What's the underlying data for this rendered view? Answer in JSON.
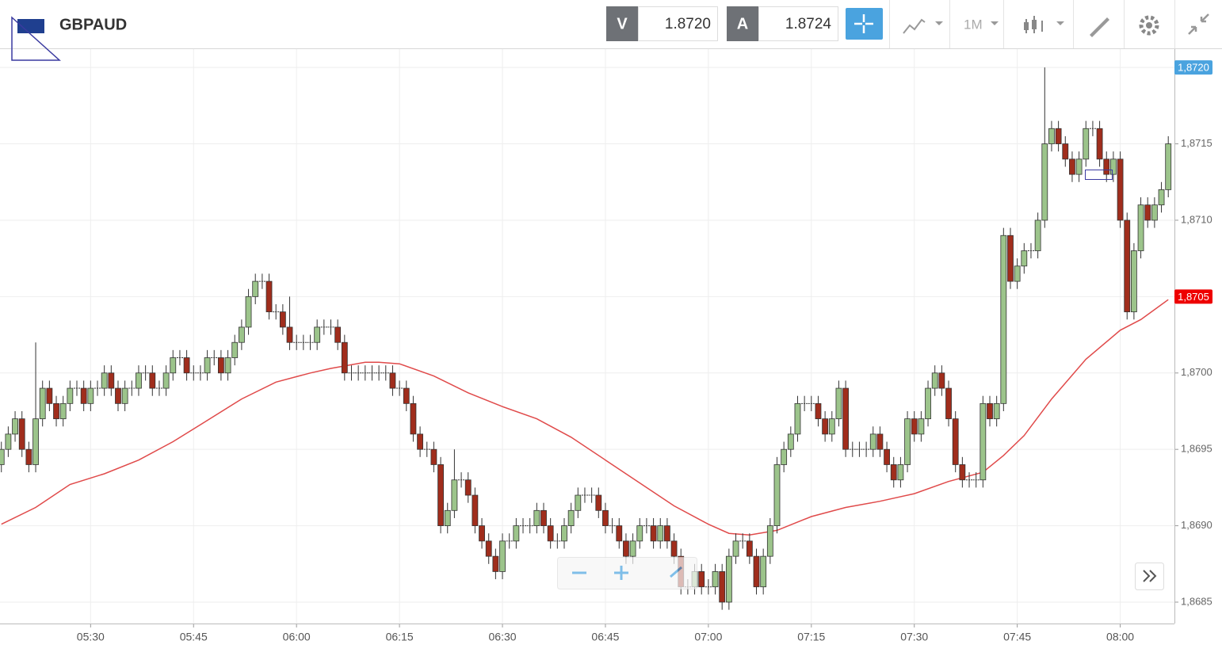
{
  "header": {
    "symbol": "GBPAUD",
    "sell_label": "V",
    "sell_price": "1.8720",
    "buy_label": "A",
    "buy_price": "1.8724",
    "timeframe": "1M"
  },
  "chart_data": {
    "type": "candlestick",
    "up_color": "#9cc48b",
    "down_color": "#a02d1c",
    "grid": true,
    "x": [
      317,
      318,
      319,
      320,
      321,
      322,
      323,
      324,
      325,
      326,
      327,
      328,
      329,
      330,
      331,
      332,
      333,
      334,
      335,
      336,
      337,
      338,
      339,
      340,
      341,
      342,
      343,
      344,
      345,
      346,
      347,
      348,
      349,
      350,
      351,
      352,
      353,
      354,
      355,
      356,
      357,
      358,
      359,
      360,
      361,
      362,
      363,
      364,
      365,
      366,
      367,
      368,
      369,
      370,
      371,
      372,
      373,
      374,
      375,
      376,
      377,
      378,
      379,
      380,
      381,
      382,
      383,
      384,
      385,
      386,
      387,
      388,
      389,
      390,
      391,
      392,
      393,
      394,
      395,
      396,
      397,
      398,
      399,
      400,
      401,
      402,
      403,
      404,
      405,
      406,
      407,
      408,
      409,
      410,
      411,
      412,
      413,
      414,
      415,
      416,
      417,
      418,
      419,
      420,
      421,
      422,
      423,
      424,
      425,
      426,
      427,
      428,
      429,
      430,
      431,
      432,
      433,
      434,
      435,
      436,
      437,
      438,
      439,
      440,
      441,
      442,
      443,
      444,
      445,
      446,
      447,
      448,
      449,
      450,
      451,
      452,
      453,
      454,
      455,
      456,
      457,
      458,
      459,
      460,
      461,
      462,
      463,
      464,
      465,
      466,
      467,
      468,
      469,
      470,
      471,
      472,
      473,
      474,
      475,
      476,
      477,
      478,
      479,
      480,
      481,
      482,
      483,
      484,
      485,
      486,
      487
    ],
    "open": [
      1.8694,
      1.8695,
      1.8696,
      1.8697,
      1.8695,
      1.8694,
      1.8697,
      1.8699,
      1.8698,
      1.8697,
      1.8698,
      1.8699,
      1.8699,
      1.8698,
      1.8699,
      1.8699,
      1.87,
      1.8699,
      1.8698,
      1.8699,
      1.8699,
      1.87,
      1.87,
      1.8699,
      1.8699,
      1.87,
      1.8701,
      1.8701,
      1.87,
      1.87,
      1.87,
      1.8701,
      1.8701,
      1.87,
      1.8701,
      1.8702,
      1.8703,
      1.8705,
      1.8706,
      1.8706,
      1.8704,
      1.8704,
      1.8703,
      1.8702,
      1.8702,
      1.8702,
      1.8702,
      1.8703,
      1.8703,
      1.8703,
      1.8702,
      1.87,
      1.87,
      1.87,
      1.87,
      1.87,
      1.87,
      1.87,
      1.8699,
      1.8699,
      1.8698,
      1.8696,
      1.8695,
      1.8695,
      1.8694,
      1.869,
      1.8691,
      1.8693,
      1.8693,
      1.8692,
      1.869,
      1.8689,
      1.8688,
      1.8687,
      1.8689,
      1.8689,
      1.869,
      1.869,
      1.869,
      1.8691,
      1.869,
      1.8689,
      1.8689,
      1.869,
      1.8691,
      1.8692,
      1.8692,
      1.8692,
      1.8691,
      1.869,
      1.869,
      1.8689,
      1.8688,
      1.8689,
      1.869,
      1.869,
      1.8689,
      1.869,
      1.8689,
      1.8688,
      1.8686,
      1.8686,
      1.8687,
      1.8686,
      1.8686,
      1.8687,
      1.8685,
      1.8688,
      1.8689,
      1.8689,
      1.8688,
      1.8686,
      1.8688,
      1.869,
      1.8694,
      1.8695,
      1.8696,
      1.8698,
      1.8698,
      1.8698,
      1.8697,
      1.8696,
      1.8697,
      1.8699,
      1.8695,
      1.8695,
      1.8695,
      1.8695,
      1.8696,
      1.8695,
      1.8694,
      1.8693,
      1.8694,
      1.8697,
      1.8696,
      1.8697,
      1.8699,
      1.87,
      1.8699,
      1.8697,
      1.8694,
      1.8693,
      1.8693,
      1.8693,
      1.8698,
      1.8697,
      1.8698,
      1.8709,
      1.8706,
      1.8707,
      1.8708,
      1.8708,
      1.871,
      1.8715,
      1.8716,
      1.8715,
      1.8714,
      1.8713,
      1.8714,
      1.8716,
      1.8716,
      1.8714,
      1.8713,
      1.8714,
      1.871,
      1.8704,
      1.8708,
      1.8711,
      1.871,
      1.8711,
      1.8712
    ],
    "high": [
      1.86955,
      1.86965,
      1.86975,
      1.86975,
      1.86955,
      1.8702,
      1.86995,
      1.86995,
      1.86985,
      1.86985,
      1.86995,
      1.86995,
      1.86995,
      1.86995,
      1.86995,
      1.87005,
      1.87005,
      1.86995,
      1.86995,
      1.86995,
      1.87005,
      1.87005,
      1.87005,
      1.86995,
      1.87005,
      1.87015,
      1.87015,
      1.87015,
      1.87005,
      1.87005,
      1.87015,
      1.87015,
      1.87015,
      1.87015,
      1.87025,
      1.87035,
      1.87055,
      1.87065,
      1.87065,
      1.87065,
      1.87045,
      1.87045,
      1.8705,
      1.87025,
      1.87025,
      1.87025,
      1.87035,
      1.87035,
      1.87035,
      1.87035,
      1.87025,
      1.87005,
      1.87005,
      1.87005,
      1.87005,
      1.87005,
      1.87005,
      1.87005,
      1.86995,
      1.86995,
      1.86985,
      1.86965,
      1.86955,
      1.86955,
      1.86945,
      1.86915,
      1.8695,
      1.86935,
      1.86935,
      1.86925,
      1.86905,
      1.86895,
      1.86885,
      1.86895,
      1.86895,
      1.86905,
      1.86905,
      1.86905,
      1.86915,
      1.86915,
      1.86905,
      1.86895,
      1.86905,
      1.86915,
      1.86925,
      1.86925,
      1.86925,
      1.86925,
      1.86915,
      1.86905,
      1.86905,
      1.86895,
      1.86895,
      1.86905,
      1.86905,
      1.86905,
      1.86905,
      1.86905,
      1.86895,
      1.86885,
      1.86865,
      1.86875,
      1.86875,
      1.86865,
      1.86875,
      1.86875,
      1.86885,
      1.86895,
      1.86895,
      1.86895,
      1.86885,
      1.86885,
      1.86905,
      1.86945,
      1.86955,
      1.86965,
      1.86985,
      1.86985,
      1.86985,
      1.86985,
      1.86975,
      1.86975,
      1.86995,
      1.86995,
      1.86955,
      1.86955,
      1.86955,
      1.86965,
      1.86965,
      1.86955,
      1.86945,
      1.86945,
      1.86975,
      1.86975,
      1.86975,
      1.86995,
      1.87005,
      1.87005,
      1.86995,
      1.86975,
      1.86945,
      1.86935,
      1.86935,
      1.86985,
      1.86985,
      1.86985,
      1.87095,
      1.87095,
      1.87075,
      1.87085,
      1.87085,
      1.87105,
      1.872,
      1.87165,
      1.87165,
      1.87155,
      1.87145,
      1.87145,
      1.87165,
      1.87165,
      1.87165,
      1.87145,
      1.87145,
      1.87145,
      1.87105,
      1.87085,
      1.87115,
      1.87115,
      1.87115,
      1.87125,
      1.87155
    ],
    "low": [
      1.86935,
      1.86945,
      1.86955,
      1.86945,
      1.86935,
      1.86935,
      1.86965,
      1.86975,
      1.86965,
      1.86965,
      1.86975,
      1.86985,
      1.86975,
      1.86975,
      1.86985,
      1.86985,
      1.86985,
      1.86975,
      1.86975,
      1.86985,
      1.86985,
      1.86995,
      1.86985,
      1.86985,
      1.86985,
      1.86995,
      1.87005,
      1.86995,
      1.86995,
      1.86995,
      1.86995,
      1.87005,
      1.86995,
      1.86995,
      1.87005,
      1.87015,
      1.87025,
      1.87045,
      1.87055,
      1.87035,
      1.87035,
      1.87025,
      1.87015,
      1.87015,
      1.87015,
      1.87015,
      1.87015,
      1.87025,
      1.87025,
      1.87015,
      1.86995,
      1.86995,
      1.86995,
      1.86995,
      1.86995,
      1.86995,
      1.86995,
      1.86985,
      1.86985,
      1.86975,
      1.86955,
      1.86945,
      1.86945,
      1.86935,
      1.86895,
      1.86895,
      1.86905,
      1.86925,
      1.86915,
      1.86895,
      1.86885,
      1.86875,
      1.86865,
      1.86865,
      1.86885,
      1.86885,
      1.86895,
      1.86895,
      1.86895,
      1.86895,
      1.86885,
      1.86885,
      1.86885,
      1.86895,
      1.86905,
      1.86915,
      1.86915,
      1.86905,
      1.86895,
      1.86895,
      1.86885,
      1.86875,
      1.86875,
      1.86885,
      1.86895,
      1.86885,
      1.86885,
      1.86885,
      1.86875,
      1.86855,
      1.86855,
      1.86855,
      1.86855,
      1.86855,
      1.86855,
      1.86845,
      1.86845,
      1.86875,
      1.86885,
      1.86875,
      1.86855,
      1.86855,
      1.86875,
      1.86895,
      1.86935,
      1.86945,
      1.86955,
      1.86975,
      1.86975,
      1.86965,
      1.86955,
      1.86955,
      1.86965,
      1.86945,
      1.86945,
      1.86945,
      1.86945,
      1.86945,
      1.86945,
      1.86935,
      1.86925,
      1.86925,
      1.86935,
      1.86955,
      1.86955,
      1.86965,
      1.86985,
      1.86985,
      1.86965,
      1.86935,
      1.86925,
      1.86925,
      1.86925,
      1.86925,
      1.86965,
      1.86965,
      1.86975,
      1.87055,
      1.87055,
      1.87065,
      1.87075,
      1.87075,
      1.87095,
      1.87145,
      1.87145,
      1.87135,
      1.87125,
      1.87125,
      1.87135,
      1.87155,
      1.87135,
      1.87125,
      1.87125,
      1.87095,
      1.87035,
      1.87035,
      1.87075,
      1.87095,
      1.87095,
      1.87105,
      1.87115
    ],
    "close": [
      1.8695,
      1.8696,
      1.8697,
      1.8695,
      1.8694,
      1.8697,
      1.8699,
      1.8698,
      1.8697,
      1.8698,
      1.8699,
      1.8699,
      1.8698,
      1.8699,
      1.8699,
      1.87,
      1.8699,
      1.8698,
      1.8699,
      1.8699,
      1.87,
      1.87,
      1.8699,
      1.8699,
      1.87,
      1.8701,
      1.8701,
      1.87,
      1.87,
      1.87,
      1.8701,
      1.8701,
      1.87,
      1.8701,
      1.8702,
      1.8703,
      1.8705,
      1.8706,
      1.8706,
      1.8704,
      1.8704,
      1.8703,
      1.8702,
      1.8702,
      1.8702,
      1.8702,
      1.8703,
      1.8703,
      1.8703,
      1.8702,
      1.87,
      1.87,
      1.87,
      1.87,
      1.87,
      1.87,
      1.87,
      1.8699,
      1.8699,
      1.8698,
      1.8696,
      1.8695,
      1.8695,
      1.8694,
      1.869,
      1.8691,
      1.8693,
      1.8693,
      1.8692,
      1.869,
      1.8689,
      1.8688,
      1.8687,
      1.8689,
      1.8689,
      1.869,
      1.869,
      1.869,
      1.8691,
      1.869,
      1.8689,
      1.8689,
      1.869,
      1.8691,
      1.8692,
      1.8692,
      1.8692,
      1.8691,
      1.869,
      1.869,
      1.8689,
      1.8688,
      1.8689,
      1.869,
      1.869,
      1.8689,
      1.869,
      1.8689,
      1.8688,
      1.8686,
      1.8686,
      1.8687,
      1.8686,
      1.8686,
      1.8687,
      1.8685,
      1.8688,
      1.8689,
      1.8689,
      1.8688,
      1.8686,
      1.8688,
      1.869,
      1.8694,
      1.8695,
      1.8696,
      1.8698,
      1.8698,
      1.8698,
      1.8697,
      1.8696,
      1.8697,
      1.8699,
      1.8695,
      1.8695,
      1.8695,
      1.8695,
      1.8696,
      1.8695,
      1.8694,
      1.8693,
      1.8694,
      1.8697,
      1.8696,
      1.8697,
      1.8699,
      1.87,
      1.8699,
      1.8697,
      1.8694,
      1.8693,
      1.8693,
      1.8693,
      1.8698,
      1.8697,
      1.8698,
      1.8709,
      1.8706,
      1.8707,
      1.8708,
      1.8708,
      1.871,
      1.8715,
      1.8716,
      1.8715,
      1.8714,
      1.8713,
      1.8714,
      1.8716,
      1.8716,
      1.8714,
      1.8713,
      1.8714,
      1.871,
      1.8704,
      1.8708,
      1.8711,
      1.871,
      1.8711,
      1.8712,
      1.8715
    ],
    "ma": {
      "color": "#e04a4a",
      "x": [
        317,
        322,
        327,
        332,
        337,
        342,
        347,
        352,
        357,
        362,
        365,
        370,
        372,
        375,
        380,
        385,
        390,
        395,
        400,
        405,
        410,
        415,
        420,
        423,
        426,
        430,
        435,
        440,
        445,
        450,
        455,
        460,
        463,
        466,
        470,
        475,
        480,
        483,
        487
      ],
      "values": [
        1.86901,
        1.86912,
        1.86927,
        1.86934,
        1.86943,
        1.86955,
        1.86969,
        1.86983,
        1.86994,
        1.87,
        1.87003,
        1.87007,
        1.87007,
        1.87006,
        1.86998,
        1.86987,
        1.86978,
        1.8697,
        1.86958,
        1.86943,
        1.86928,
        1.86913,
        1.86901,
        1.86895,
        1.86894,
        1.86897,
        1.86906,
        1.86912,
        1.86916,
        1.86921,
        1.86929,
        1.86935,
        1.86946,
        1.86959,
        1.86983,
        1.87009,
        1.87028,
        1.87035,
        1.87048
      ]
    },
    "xlim": [
      316.8,
      487.9
    ],
    "xticks": [
      {
        "value": 330,
        "label": "05:30"
      },
      {
        "value": 345,
        "label": "05:45"
      },
      {
        "value": 360,
        "label": "06:00"
      },
      {
        "value": 375,
        "label": "06:15"
      },
      {
        "value": 390,
        "label": "06:30"
      },
      {
        "value": 405,
        "label": "06:45"
      },
      {
        "value": 420,
        "label": "07:00"
      },
      {
        "value": 435,
        "label": "07:15"
      },
      {
        "value": 450,
        "label": "07:30"
      },
      {
        "value": 465,
        "label": "07:45"
      },
      {
        "value": 480,
        "label": "08:00"
      }
    ],
    "ylim": [
      1.86836,
      1.87212
    ],
    "yticks": [
      {
        "value": 1.8685,
        "label": "1,8685"
      },
      {
        "value": 1.869,
        "label": "1,8690"
      },
      {
        "value": 1.8695,
        "label": "1,8695"
      },
      {
        "value": 1.87,
        "label": "1,8700"
      },
      {
        "value": 1.8705,
        "label": "1,8705"
      },
      {
        "value": 1.871,
        "label": "1,8710"
      },
      {
        "value": 1.8715,
        "label": "1,8715"
      },
      {
        "value": 1.872,
        "label": "1,8720"
      }
    ],
    "price_tags": [
      {
        "value": 1.872,
        "label": "1,8720",
        "color": "#4aa3df"
      },
      {
        "value": 1.8705,
        "label": "1,8705",
        "color": "#ee0000"
      }
    ]
  }
}
